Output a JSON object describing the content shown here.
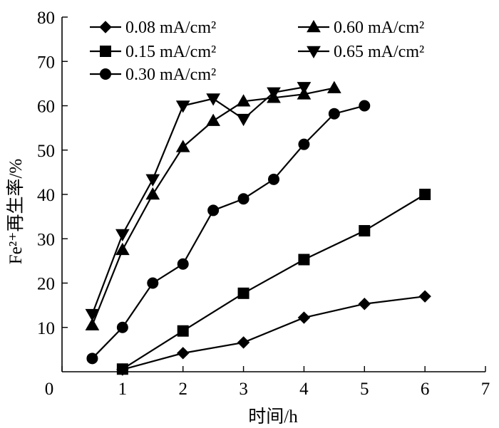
{
  "chart_data": {
    "type": "line",
    "xlabel": "时间/h",
    "ylabel": "Fe²⁺再生率/%",
    "xlim": [
      0,
      7
    ],
    "ylim": [
      0,
      80
    ],
    "x_ticks": [
      0,
      1,
      2,
      3,
      4,
      5,
      6,
      7
    ],
    "y_ticks": [
      10,
      20,
      30,
      40,
      50,
      60,
      70,
      80
    ],
    "x_tick_labels": [
      "0",
      "1",
      "2",
      "3",
      "4",
      "5",
      "6",
      "7"
    ],
    "y_tick_labels": [
      "10",
      "20",
      "30",
      "40",
      "50",
      "60",
      "70",
      "80"
    ],
    "grid": false,
    "legend_position": "top",
    "series": [
      {
        "name": "0.08 mA/cm²",
        "marker": "diamond",
        "x": [
          1,
          2,
          3,
          4,
          5,
          6
        ],
        "y": [
          0.5,
          4.2,
          6.6,
          12.2,
          15.3,
          17.0
        ]
      },
      {
        "name": "0.15 mA/cm²",
        "marker": "square",
        "x": [
          1,
          2,
          3,
          4,
          5,
          6
        ],
        "y": [
          0.6,
          9.2,
          17.7,
          25.3,
          31.8,
          40.0
        ]
      },
      {
        "name": "0.30 mA/cm²",
        "marker": "circle",
        "x": [
          0.5,
          1,
          1.5,
          2,
          2.5,
          3,
          3.5,
          4,
          4.5,
          5
        ],
        "y": [
          3.0,
          10.0,
          20.0,
          24.3,
          36.4,
          39.0,
          43.4,
          51.3,
          58.2,
          60.0
        ]
      },
      {
        "name": "0.60 mA/cm²",
        "marker": "triangle-up",
        "x": [
          0.5,
          1,
          1.5,
          2,
          2.5,
          3,
          3.5,
          4,
          4.5
        ],
        "y": [
          10.5,
          27.5,
          40.0,
          50.7,
          56.6,
          61.0,
          61.8,
          62.6,
          64.0
        ]
      },
      {
        "name": "0.65 mA/cm²",
        "marker": "triangle-down",
        "x": [
          0.5,
          1,
          1.5,
          2,
          2.5,
          3,
          3.5,
          4
        ],
        "y": [
          13.0,
          31.0,
          43.4,
          60.0,
          61.6,
          57.0,
          63.0,
          64.2
        ]
      }
    ]
  }
}
